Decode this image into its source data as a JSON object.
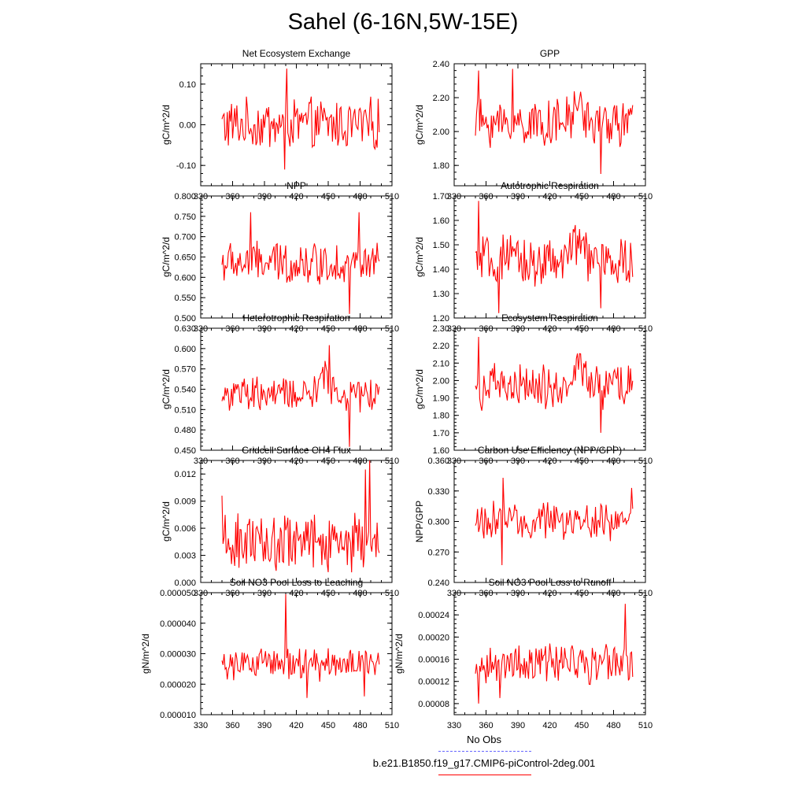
{
  "title": "Sahel (6-16N,5W-15E)",
  "colors": {
    "series": "#ff0000",
    "obs": "#6666ff",
    "axis": "#000000"
  },
  "legend": {
    "obs_label": "No Obs",
    "model_label": "b.e21.B1850.f19_g17.CMIP6-piControl-2deg.001"
  },
  "chart_data": [
    {
      "type": "line",
      "title": "Net Ecosystem Exchange",
      "ylabel": "gC/m^2/d",
      "xlabel": "",
      "xlim": [
        330,
        510
      ],
      "xticks": [
        "330",
        "360",
        "390",
        "420",
        "450",
        "480",
        "510"
      ],
      "ylim": [
        -0.15,
        0.15
      ],
      "yticks": [
        -0.1,
        0.0,
        0.1
      ],
      "ytick_labels": [
        "-0.10",
        "0.00",
        "0.10"
      ],
      "x_start": 350,
      "x_end": 498,
      "base": 0.0,
      "amp": 0.055,
      "trend": 0.0,
      "bump": 0.0,
      "peaks": [
        [
          411,
          0.138
        ],
        [
          409,
          -0.11
        ]
      ]
    },
    {
      "type": "line",
      "title": "GPP",
      "ylabel": "gC/m^2/d",
      "xlabel": "",
      "xlim": [
        330,
        510
      ],
      "xticks": [
        "330",
        "360",
        "390",
        "420",
        "450",
        "480",
        "510"
      ],
      "ylim": [
        1.68,
        2.4
      ],
      "yticks": [
        1.8,
        2.0,
        2.2,
        2.4
      ],
      "ytick_labels": [
        "1.80",
        "2.00",
        "2.20",
        "2.40"
      ],
      "x_start": 350,
      "x_end": 498,
      "base": 2.05,
      "amp": 0.12,
      "trend": 0.0,
      "bump": 0.12,
      "peaks": [
        [
          385,
          2.37
        ],
        [
          353,
          2.36
        ],
        [
          468,
          1.75
        ]
      ]
    },
    {
      "type": "line",
      "title": "NPP",
      "ylabel": "gC/m^2/d",
      "xlabel": "",
      "xlim": [
        330,
        510
      ],
      "xticks": [
        "330",
        "360",
        "390",
        "420",
        "450",
        "480",
        "510"
      ],
      "ylim": [
        0.5,
        0.8
      ],
      "yticks": [
        0.5,
        0.55,
        0.6,
        0.65,
        0.7,
        0.75,
        0.8
      ],
      "ytick_labels": [
        "0.500",
        "0.550",
        "0.600",
        "0.650",
        "0.700",
        "0.750",
        "0.800"
      ],
      "x_start": 350,
      "x_end": 498,
      "base": 0.635,
      "amp": 0.045,
      "trend": 0.0,
      "bump": 0.0,
      "peaks": [
        [
          377,
          0.76
        ],
        [
          479,
          0.76
        ],
        [
          470,
          0.51
        ]
      ]
    },
    {
      "type": "line",
      "title": "Autotrophic Respiration",
      "ylabel": "gC/m^2/d",
      "xlabel": "",
      "xlim": [
        330,
        510
      ],
      "xticks": [
        "330",
        "360",
        "390",
        "420",
        "450",
        "480",
        "510"
      ],
      "ylim": [
        1.2,
        1.7
      ],
      "yticks": [
        1.2,
        1.3,
        1.4,
        1.5,
        1.6,
        1.7
      ],
      "ytick_labels": [
        "1.20",
        "1.30",
        "1.40",
        "1.50",
        "1.60",
        "1.70"
      ],
      "x_start": 350,
      "x_end": 498,
      "base": 1.43,
      "amp": 0.09,
      "trend": 0.0,
      "bump": 0.1,
      "peaks": [
        [
          353,
          1.68
        ],
        [
          372,
          1.22
        ],
        [
          468,
          1.24
        ]
      ]
    },
    {
      "type": "line",
      "title": "Heterotrophic Respiration",
      "ylabel": "gC/m^2/d",
      "xlabel": "",
      "xlim": [
        330,
        510
      ],
      "xticks": [
        "330",
        "360",
        "390",
        "420",
        "450",
        "480",
        "510"
      ],
      "ylim": [
        0.45,
        0.63
      ],
      "yticks": [
        0.45,
        0.48,
        0.51,
        0.54,
        0.57,
        0.6,
        0.63
      ],
      "ytick_labels": [
        "0.450",
        "0.480",
        "0.510",
        "0.540",
        "0.570",
        "0.600",
        "0.630"
      ],
      "x_start": 350,
      "x_end": 498,
      "base": 0.532,
      "amp": 0.022,
      "trend": 0.0,
      "bump": 0.03,
      "peaks": [
        [
          451,
          0.605
        ],
        [
          470,
          0.455
        ]
      ]
    },
    {
      "type": "line",
      "title": "Ecosystem Respiration",
      "ylabel": "gC/m^2/d",
      "xlabel": "",
      "xlim": [
        330,
        510
      ],
      "xticks": [
        "330",
        "360",
        "390",
        "420",
        "450",
        "480",
        "510"
      ],
      "ylim": [
        1.6,
        2.3
      ],
      "yticks": [
        1.6,
        1.7,
        1.8,
        1.9,
        2.0,
        2.1,
        2.2,
        2.3
      ],
      "ytick_labels": [
        "1.60",
        "1.70",
        "1.80",
        "1.90",
        "2.00",
        "2.10",
        "2.20",
        "2.30"
      ],
      "x_start": 350,
      "x_end": 498,
      "base": 1.96,
      "amp": 0.11,
      "trend": 0.0,
      "bump": 0.13,
      "peaks": [
        [
          353,
          2.25
        ],
        [
          468,
          1.7
        ]
      ]
    },
    {
      "type": "line",
      "title": "Gridcell Surface CH4 Flux",
      "ylabel": "gC/m^2/d",
      "xlabel": "",
      "xlim": [
        330,
        510
      ],
      "xticks": [
        "330",
        "360",
        "390",
        "420",
        "450",
        "480",
        "510"
      ],
      "ylim": [
        0.0,
        0.0135
      ],
      "yticks": [
        0.0,
        0.003,
        0.006,
        0.009,
        0.012
      ],
      "ytick_labels": [
        "0.000",
        "0.003",
        "0.006",
        "0.009",
        "0.012"
      ],
      "x_start": 350,
      "x_end": 498,
      "base": 0.0045,
      "amp": 0.0028,
      "trend": 0.0,
      "bump": 0.0,
      "floor": 0.0004,
      "peaks": [
        [
          489,
          0.0135
        ],
        [
          485,
          0.0125
        ],
        [
          350,
          0.0096
        ]
      ]
    },
    {
      "type": "line",
      "title": "Carbon Use Efficiency (NPP/GPP)",
      "ylabel": "NPP/GPP",
      "xlabel": "",
      "xlim": [
        330,
        510
      ],
      "xticks": [
        "330",
        "360",
        "390",
        "420",
        "450",
        "480",
        "510"
      ],
      "ylim": [
        0.24,
        0.36
      ],
      "yticks": [
        0.24,
        0.27,
        0.3,
        0.33,
        0.36
      ],
      "ytick_labels": [
        "0.240",
        "0.270",
        "0.300",
        "0.330",
        "0.360"
      ],
      "x_start": 350,
      "x_end": 498,
      "base": 0.3,
      "amp": 0.016,
      "trend": 0.0,
      "bump": 0.0,
      "peaks": [
        [
          376,
          0.343
        ],
        [
          375,
          0.257
        ],
        [
          497,
          0.333
        ]
      ]
    },
    {
      "type": "line",
      "title": "Soil NO3 Pool Loss to Leaching",
      "ylabel": "gN/m^2/d",
      "xlabel": "",
      "xlim": [
        330,
        510
      ],
      "xticks": [
        "330",
        "360",
        "390",
        "420",
        "450",
        "480",
        "510"
      ],
      "ylim": [
        1e-05,
        5e-05
      ],
      "yticks": [
        1e-05,
        2e-05,
        3e-05,
        4e-05,
        5e-05
      ],
      "ytick_labels": [
        "0.000010",
        "0.000020",
        "0.000030",
        "0.000040",
        "0.000050"
      ],
      "x_start": 350,
      "x_end": 498,
      "base": 2.65e-05,
      "amp": 4.5e-06,
      "trend": 0.0,
      "bump": 0.0,
      "peaks": [
        [
          410,
          4.95e-05
        ],
        [
          430,
          1.55e-05
        ],
        [
          484,
          1.6e-05
        ]
      ]
    },
    {
      "type": "line",
      "title": "Soil NO3 Pool Loss to Runoff",
      "ylabel": "gN/m^2/d",
      "xlabel": "",
      "xlim": [
        330,
        510
      ],
      "xticks": [
        "330",
        "360",
        "390",
        "420",
        "450",
        "480",
        "510"
      ],
      "ylim": [
        6e-05,
        0.00028
      ],
      "yticks": [
        8e-05,
        0.00012,
        0.00016,
        0.0002,
        0.00024
      ],
      "ytick_labels": [
        "0.00008",
        "0.00012",
        "0.00016",
        "0.00020",
        "0.00024"
      ],
      "x_start": 350,
      "x_end": 498,
      "base": 0.000152,
      "amp": 3e-05,
      "trend": 0.0,
      "bump": 0.0,
      "peaks": [
        [
          491,
          0.00026
        ],
        [
          353,
          8e-05
        ],
        [
          373,
          9e-05
        ]
      ]
    }
  ]
}
